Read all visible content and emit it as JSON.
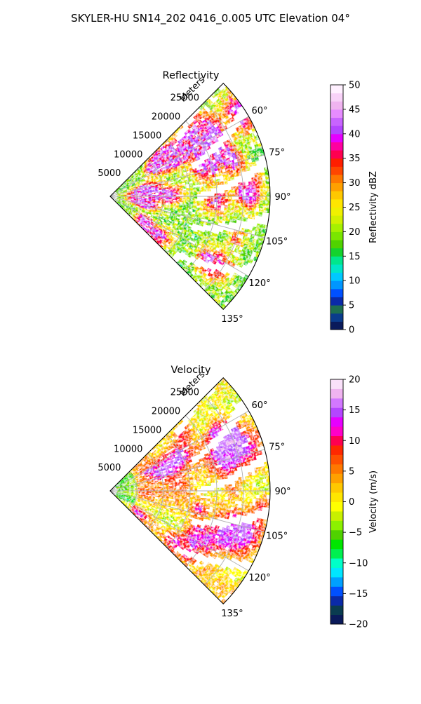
{
  "figure": {
    "title": "SKYLER-HU  SN14_202  0416_0.005 UTC Elevation 04°"
  },
  "chart_data": [
    {
      "type": "heatmap",
      "projection": "polar-sector",
      "title": "Reflectivity",
      "range_label": "Meters",
      "range_ticks": [
        "5000",
        "10000",
        "15000",
        "20000",
        "25000"
      ],
      "range_values": [
        5000,
        10000,
        15000,
        20000,
        25000
      ],
      "rmax": 30000,
      "azimuth_range": [
        45,
        135
      ],
      "azimuth_ticks": [
        "60°",
        "75°",
        "90°",
        "105°",
        "120°",
        "135°"
      ],
      "azimuth_values": [
        60,
        75,
        90,
        105,
        120,
        135
      ],
      "grid": true,
      "colorbar": {
        "label": "Reflectivity dBZ",
        "min": 0,
        "max": 50,
        "ticks": [
          "0",
          "5",
          "10",
          "15",
          "20",
          "25",
          "30",
          "35",
          "40",
          "45",
          "50"
        ],
        "tick_values": [
          0,
          5,
          10,
          15,
          20,
          25,
          30,
          35,
          40,
          45,
          50
        ],
        "colors": [
          "#0a1a5a",
          "#0a3c8c",
          "#1e6e50",
          "#0a2aa8",
          "#0050ff",
          "#0096ff",
          "#00c8ff",
          "#00e6c8",
          "#00e68c",
          "#14d22d",
          "#50d200",
          "#7ae600",
          "#a6f000",
          "#d2f000",
          "#f0f000",
          "#ffe600",
          "#ffc800",
          "#ffa000",
          "#ff7800",
          "#ff4600",
          "#ff1e00",
          "#ff0050",
          "#ff00a0",
          "#e600ff",
          "#b446ff",
          "#c864ff",
          "#e68cff",
          "#f0b4f0",
          "#f8d2f8",
          "#fff0ff"
        ]
      }
    },
    {
      "type": "heatmap",
      "projection": "polar-sector",
      "title": "Velocity",
      "range_label": "Meters",
      "range_ticks": [
        "5000",
        "10000",
        "15000",
        "20000",
        "25000"
      ],
      "range_values": [
        5000,
        10000,
        15000,
        20000,
        25000
      ],
      "rmax": 30000,
      "azimuth_range": [
        45,
        135
      ],
      "azimuth_ticks": [
        "60°",
        "75°",
        "90°",
        "105°",
        "120°",
        "135°"
      ],
      "azimuth_values": [
        60,
        75,
        90,
        105,
        120,
        135
      ],
      "grid": true,
      "colorbar": {
        "label": "Velocity (m/s)",
        "min": -20,
        "max": 20,
        "ticks": [
          "−20",
          "−15",
          "−10",
          "−5",
          "0",
          "5",
          "10",
          "15",
          "20"
        ],
        "tick_values": [
          -20,
          -15,
          -10,
          -5,
          0,
          5,
          10,
          15,
          20
        ],
        "colors": [
          "#0a1a5a",
          "#0a3c50",
          "#0a2aa8",
          "#0050ff",
          "#00a0ff",
          "#00e6ff",
          "#00ffc8",
          "#00f050",
          "#00e600",
          "#50d200",
          "#8cf000",
          "#c8f000",
          "#ffff00",
          "#ffe600",
          "#ffc800",
          "#ffa000",
          "#ff7800",
          "#ff5000",
          "#ff2800",
          "#ff0050",
          "#ff00c8",
          "#e600ff",
          "#b446ff",
          "#d278ff",
          "#f0b4f0",
          "#fae1fa"
        ]
      }
    }
  ]
}
